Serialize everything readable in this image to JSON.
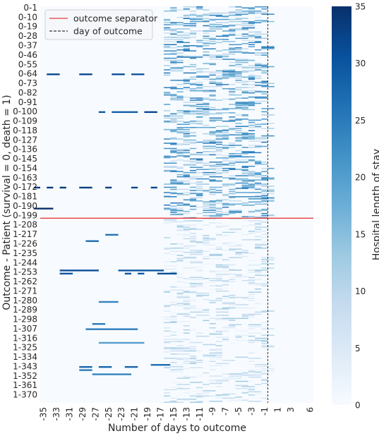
{
  "chart_data": {
    "type": "heatmap",
    "xlabel": "Number of days to outcome",
    "ylabel": "Outcome - Patient (survival = 0, death = 1)",
    "x_tick_labels": [
      "-35",
      "-33",
      "-31",
      "-29",
      "-27",
      "-25",
      "-23",
      "-21",
      "-19",
      "-17",
      "-15",
      "-13",
      "-11",
      "-9",
      "-7",
      "-5",
      "-3",
      "-1",
      "1",
      "3",
      "6"
    ],
    "x_range": [
      -35,
      7
    ],
    "y_tick_labels": [
      "0-1",
      "0-10",
      "0-19",
      "0-28",
      "0-37",
      "0-46",
      "0-55",
      "0-64",
      "0-73",
      "0-82",
      "0-91",
      "0-100",
      "0-109",
      "0-118",
      "0-127",
      "0-136",
      "0-145",
      "0-154",
      "0-163",
      "0-172",
      "0-181",
      "0-190",
      "0-199",
      "1-208",
      "1-217",
      "1-226",
      "1-235",
      "1-244",
      "1-253",
      "1-262",
      "1-271",
      "1-280",
      "1-289",
      "1-298",
      "1-307",
      "1-316",
      "1-325",
      "1-334",
      "1-343",
      "1-352",
      "1-361",
      "1-370"
    ],
    "n_patients": 378,
    "separator_after_patient": 202,
    "day_of_outcome_x": 0,
    "colorbar": {
      "label": "Hospital length of stay",
      "range": [
        0,
        35
      ],
      "ticks": [
        "0",
        "5",
        "10",
        "15",
        "20",
        "25",
        "30",
        "35"
      ],
      "colors": [
        "#f7fbff",
        "#deebf7",
        "#c6dbef",
        "#9ecae1",
        "#6baed6",
        "#4292c6",
        "#2171b5",
        "#08519c",
        "#08306b"
      ]
    },
    "legend": {
      "position": "top-left",
      "entries": [
        {
          "label": "outcome separator",
          "color": "#e8383b",
          "style": "solid"
        },
        {
          "label": "day of outcome",
          "color": "#333333",
          "style": "dashed"
        }
      ]
    },
    "long_stays": [
      {
        "patient": 64,
        "x0": -34,
        "x1": -32,
        "value": 32
      },
      {
        "patient": 64,
        "x0": -29,
        "x1": -27,
        "value": 32
      },
      {
        "patient": 64,
        "x0": -24,
        "x1": -22,
        "value": 31
      },
      {
        "patient": 64,
        "x0": -21,
        "x1": -19,
        "value": 30
      },
      {
        "patient": 100,
        "x0": -26,
        "x1": -25,
        "value": 30
      },
      {
        "patient": 100,
        "x0": -24,
        "x1": -20,
        "value": 29
      },
      {
        "patient": 100,
        "x0": -19,
        "x1": -17,
        "value": 32
      },
      {
        "patient": 172,
        "x0": -36,
        "x1": -35,
        "value": 34
      },
      {
        "patient": 172,
        "x0": -34,
        "x1": -33,
        "value": 34
      },
      {
        "patient": 172,
        "x0": -32,
        "x1": -31,
        "value": 34
      },
      {
        "patient": 172,
        "x0": -29,
        "x1": -27,
        "value": 33
      },
      {
        "patient": 172,
        "x0": -25,
        "x1": -24,
        "value": 33
      },
      {
        "patient": 172,
        "x0": -21,
        "x1": -20,
        "value": 32
      },
      {
        "patient": 172,
        "x0": -18,
        "x1": -17,
        "value": 32
      },
      {
        "patient": 192,
        "x0": -36,
        "x1": -33,
        "value": 35
      },
      {
        "patient": 251,
        "x0": -32,
        "x1": -26,
        "value": 31
      },
      {
        "patient": 251,
        "x0": -23,
        "x1": -16,
        "value": 30
      },
      {
        "patient": 254,
        "x0": -32,
        "x1": -30,
        "value": 30
      },
      {
        "patient": 254,
        "x0": -22,
        "x1": -21,
        "value": 30
      },
      {
        "patient": 254,
        "x0": -20,
        "x1": -19,
        "value": 30
      },
      {
        "patient": 254,
        "x0": -17,
        "x1": -14,
        "value": 31
      },
      {
        "patient": 223,
        "x0": -28,
        "x1": -26,
        "value": 27
      },
      {
        "patient": 217,
        "x0": -25,
        "x1": -23,
        "value": 26
      },
      {
        "patient": 281,
        "x0": -26,
        "x1": -23,
        "value": 24
      },
      {
        "patient": 307,
        "x0": -28,
        "x1": -20,
        "value": 25
      },
      {
        "patient": 302,
        "x0": -27,
        "x1": -25,
        "value": 25
      },
      {
        "patient": 343,
        "x0": -29,
        "x1": -27,
        "value": 28
      },
      {
        "patient": 343,
        "x0": -26,
        "x1": -24,
        "value": 28
      },
      {
        "patient": 343,
        "x0": -22,
        "x1": -20,
        "value": 28
      },
      {
        "patient": 341,
        "x0": -18,
        "x1": -15,
        "value": 27
      },
      {
        "patient": 350,
        "x0": -27,
        "x1": -21,
        "value": 24
      },
      {
        "patient": 346,
        "x0": -29,
        "x1": -27,
        "value": 25
      },
      {
        "patient": 320,
        "x0": -26,
        "x1": -19,
        "value": 20
      }
    ]
  }
}
